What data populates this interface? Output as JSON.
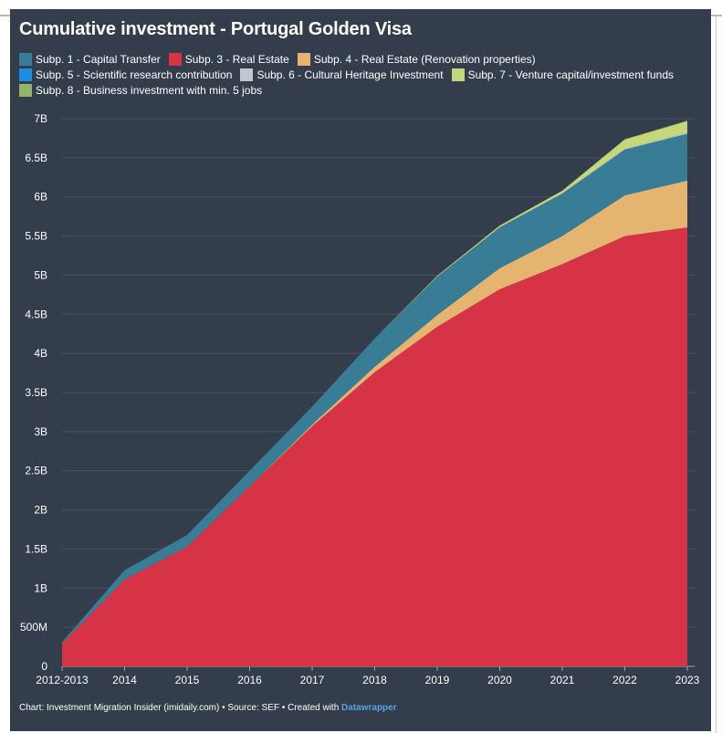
{
  "chart_data": {
    "type": "area",
    "stacked": true,
    "title": "Cumulative investment - Portugal Golden Visa",
    "xlabel": "",
    "ylabel": "",
    "ylim": [
      0,
      7000000000
    ],
    "grid": true,
    "legend_position": "top",
    "categories": [
      "2012-2013",
      "2014",
      "2015",
      "2016",
      "2017",
      "2018",
      "2019",
      "2020",
      "2021",
      "2022",
      "2023"
    ],
    "y_ticks": [
      {
        "value": 0,
        "label": "0"
      },
      {
        "value": 500000000,
        "label": "500M"
      },
      {
        "value": 1000000000,
        "label": "1B"
      },
      {
        "value": 1500000000,
        "label": "1.5B"
      },
      {
        "value": 2000000000,
        "label": "2B"
      },
      {
        "value": 2500000000,
        "label": "2.5B"
      },
      {
        "value": 3000000000,
        "label": "3B"
      },
      {
        "value": 3500000000,
        "label": "3.5B"
      },
      {
        "value": 4000000000,
        "label": "4B"
      },
      {
        "value": 4500000000,
        "label": "4.5B"
      },
      {
        "value": 5000000000,
        "label": "5B"
      },
      {
        "value": 5500000000,
        "label": "5.5B"
      },
      {
        "value": 6000000000,
        "label": "6B"
      },
      {
        "value": 6500000000,
        "label": "6.5B"
      },
      {
        "value": 7000000000,
        "label": "7B"
      }
    ],
    "series": [
      {
        "name": "Subp. 3 - Real Estate",
        "color": "#d73346",
        "values": [
          290000000,
          1110000000,
          1530000000,
          2300000000,
          3070000000,
          3760000000,
          4340000000,
          4820000000,
          5140000000,
          5500000000,
          5610000000
        ]
      },
      {
        "name": "Subp. 4 - Real Estate (Renovation properties)",
        "color": "#e5b471",
        "values": [
          0,
          0,
          0,
          0,
          20000000,
          70000000,
          150000000,
          270000000,
          360000000,
          520000000,
          600000000
        ]
      },
      {
        "name": "Subp. 1 - Capital Transfer",
        "color": "#387c96",
        "values": [
          20000000,
          120000000,
          150000000,
          200000000,
          230000000,
          360000000,
          490000000,
          520000000,
          540000000,
          580000000,
          590000000
        ]
      },
      {
        "name": "Subp. 5 - Scientific research contribution",
        "color": "#1a8ee3",
        "values": [
          0,
          0,
          0,
          0,
          0,
          0,
          0,
          0,
          2000000,
          5000000,
          8000000
        ]
      },
      {
        "name": "Subp. 6 - Cultural Heritage Investment",
        "color": "#bec8d0",
        "values": [
          0,
          0,
          0,
          0,
          0,
          0,
          2000000,
          4000000,
          6000000,
          9000000,
          11000000
        ]
      },
      {
        "name": "Subp. 7 - Venture capital/investment funds",
        "color": "#c5d879",
        "values": [
          0,
          0,
          0,
          0,
          0,
          0,
          10000000,
          20000000,
          30000000,
          120000000,
          150000000
        ]
      },
      {
        "name": "Subp. 8 - Business investment with min. 5 jobs",
        "color": "#93b46b",
        "values": [
          0,
          0,
          0,
          0,
          0,
          0,
          0,
          0,
          1000000,
          3000000,
          6000000
        ]
      }
    ],
    "legend_rows": [
      [
        {
          "name": "Subp. 1 - Capital Transfer",
          "color": "#387c96"
        },
        {
          "name": "Subp. 3 - Real Estate",
          "color": "#d73346"
        },
        {
          "name": "Subp. 4 - Real Estate (Renovation properties)",
          "color": "#e5b471"
        }
      ],
      [
        {
          "name": "Subp. 5 - Scientific research contribution",
          "color": "#1a8ee3"
        },
        {
          "name": "Subp. 6 - Cultural Heritage Investment",
          "color": "#bec8d0"
        },
        {
          "name": "Subp. 7 - Venture capital/investment funds",
          "color": "#c5d879"
        }
      ],
      [
        {
          "name": "Subp. 8 - Business investment with min. 5 jobs",
          "color": "#93b46b"
        }
      ]
    ]
  },
  "footer": {
    "prefix": "Chart: Investment Migration Insider (imidaily.com) • Source: SEF • Created with ",
    "link_text": "Datawrapper"
  },
  "colors": {
    "background": "#343d4c",
    "grid": "#4a5363",
    "text": "#ffffff",
    "link": "#5aa2da"
  }
}
